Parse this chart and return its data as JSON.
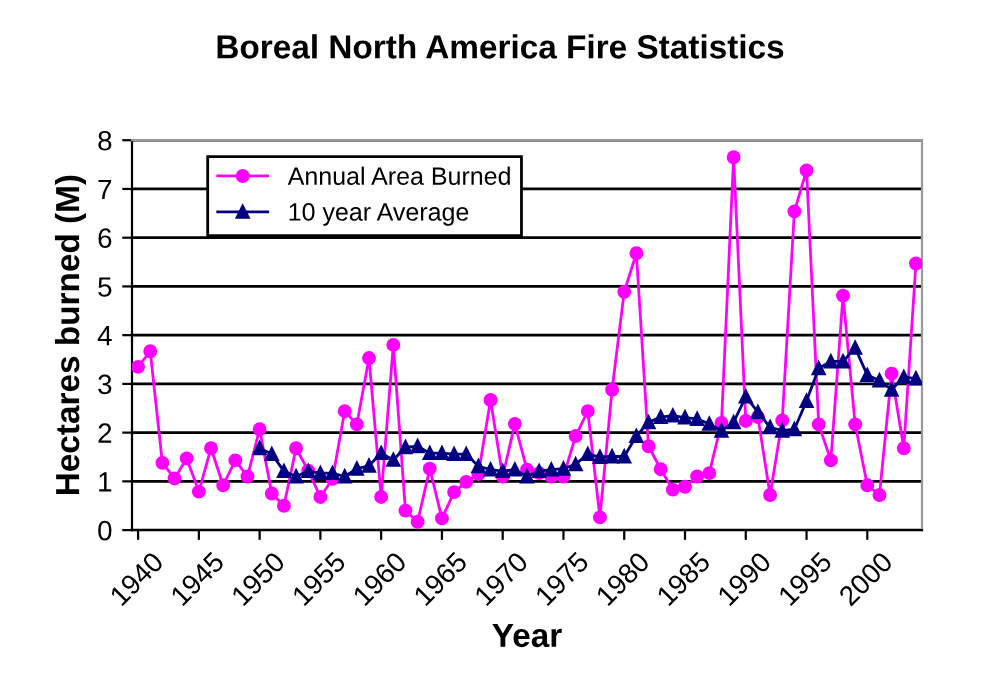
{
  "chart_data": {
    "type": "line",
    "title": "Boreal North America Fire Statistics",
    "xlabel": "Year",
    "ylabel": "Hectares burned (M)",
    "xlim": [
      1939.5,
      2004.5
    ],
    "xticks": [
      1940,
      1945,
      1950,
      1955,
      1960,
      1965,
      1970,
      1975,
      1980,
      1985,
      1990,
      1995,
      2000
    ],
    "ylim": [
      0,
      8
    ],
    "yticks": [
      0,
      1,
      2,
      3,
      4,
      5,
      6,
      7,
      8
    ],
    "grid": "y",
    "legend": "top left",
    "series": [
      {
        "name": "Annual Area Burned",
        "color": "#ff00ff",
        "marker": "circle",
        "x": [
          1940,
          1941,
          1942,
          1943,
          1944,
          1945,
          1946,
          1947,
          1948,
          1949,
          1950,
          1951,
          1952,
          1953,
          1954,
          1955,
          1956,
          1957,
          1958,
          1959,
          1960,
          1961,
          1962,
          1963,
          1964,
          1965,
          1966,
          1967,
          1968,
          1969,
          1970,
          1971,
          1972,
          1973,
          1974,
          1975,
          1976,
          1977,
          1978,
          1979,
          1980,
          1981,
          1982,
          1983,
          1984,
          1985,
          1986,
          1987,
          1988,
          1989,
          1990,
          1991,
          1992,
          1993,
          1994,
          1995,
          1996,
          1997,
          1998,
          1999,
          2000,
          2001,
          2002,
          2003,
          2004
        ],
        "values": [
          3.35,
          3.67,
          1.38,
          1.06,
          1.47,
          0.79,
          1.68,
          0.92,
          1.43,
          1.1,
          2.07,
          0.75,
          0.5,
          1.68,
          1.22,
          0.68,
          1.05,
          2.44,
          2.17,
          3.53,
          0.68,
          3.8,
          0.4,
          0.17,
          1.26,
          0.24,
          0.78,
          0.99,
          1.15,
          2.67,
          1.1,
          2.18,
          1.24,
          1.17,
          1.1,
          1.1,
          1.93,
          2.44,
          0.26,
          2.88,
          4.89,
          5.68,
          1.72,
          1.25,
          0.83,
          0.89,
          1.1,
          1.17,
          2.2,
          7.65,
          2.24,
          2.32,
          0.72,
          2.25,
          6.54,
          7.38,
          2.17,
          1.43,
          4.81,
          2.17,
          0.92,
          0.72,
          3.21,
          1.68,
          5.47
        ]
      },
      {
        "name": "10 year Average",
        "color": "#000080",
        "marker": "triangle",
        "x": [
          1950,
          1951,
          1952,
          1953,
          1954,
          1955,
          1956,
          1957,
          1958,
          1959,
          1960,
          1961,
          1962,
          1963,
          1964,
          1965,
          1966,
          1967,
          1968,
          1969,
          1970,
          1971,
          1972,
          1973,
          1974,
          1975,
          1976,
          1977,
          1978,
          1979,
          1980,
          1981,
          1982,
          1983,
          1984,
          1985,
          1986,
          1987,
          1988,
          1989,
          1990,
          1991,
          1992,
          1993,
          1994,
          1995,
          1996,
          1997,
          1998,
          1999,
          2000,
          2001,
          2002,
          2003,
          2004
        ],
        "values": [
          1.68,
          1.56,
          1.21,
          1.1,
          1.21,
          1.17,
          1.17,
          1.1,
          1.26,
          1.32,
          1.58,
          1.44,
          1.7,
          1.72,
          1.58,
          1.58,
          1.56,
          1.56,
          1.31,
          1.24,
          1.21,
          1.24,
          1.1,
          1.21,
          1.24,
          1.26,
          1.35,
          1.56,
          1.5,
          1.51,
          1.51,
          1.93,
          2.21,
          2.32,
          2.35,
          2.31,
          2.28,
          2.18,
          2.04,
          2.21,
          2.74,
          2.42,
          2.11,
          2.04,
          2.07,
          2.65,
          3.32,
          3.46,
          3.46,
          3.74,
          3.18,
          3.07,
          2.88,
          3.14,
          3.11
        ]
      }
    ]
  }
}
